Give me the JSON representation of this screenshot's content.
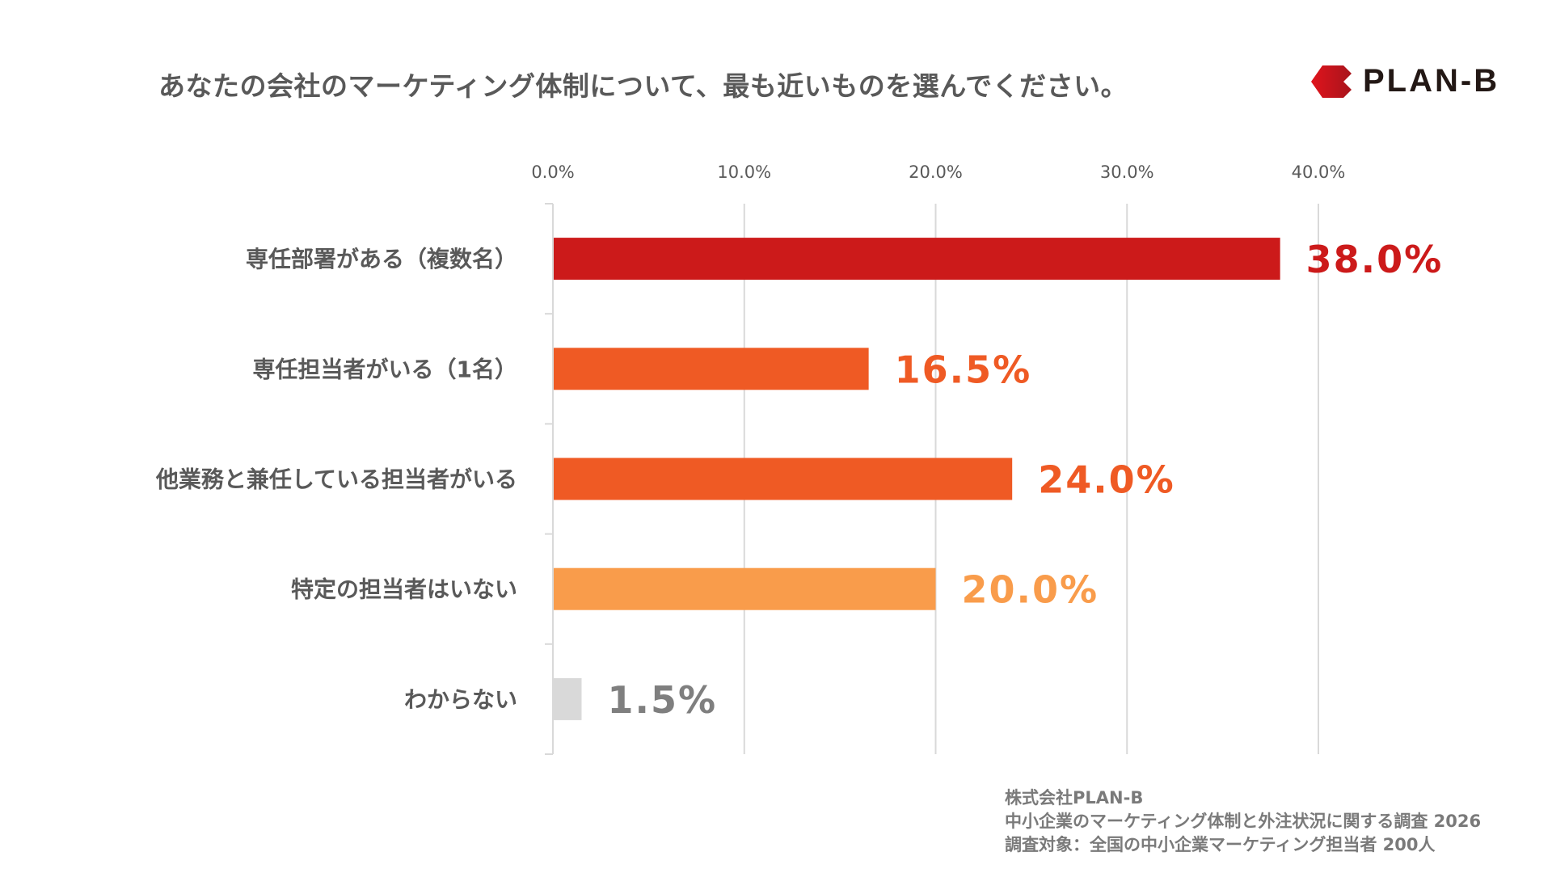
{
  "title": "あなたの会社のマーケティング体制について、最も近いものを選んでください。",
  "logo": {
    "text": "PLAN-B",
    "color": "#d4141c"
  },
  "footer": [
    "株式会社PLAN-B",
    "中小企業のマーケティング体制と外注状況に関する調査 2026",
    "調査対象：全国の中小企業マーケティング担当者 200人"
  ],
  "chart_data": {
    "type": "bar",
    "orientation": "horizontal",
    "categories": [
      "専任部署がある（複数名）",
      "専任担当者がいる（1名）",
      "他業務と兼任している担当者がいる",
      "特定の担当者はいない",
      "わからない"
    ],
    "values": [
      38.0,
      16.5,
      24.0,
      20.0,
      1.5
    ],
    "data_labels": [
      "38.0%",
      "16.5%",
      "24.0%",
      "20.0%",
      "1.5%"
    ],
    "colors": [
      "#cc1a1a",
      "#ef5a24",
      "#ef5a24",
      "#f99c4b",
      "#d9d9d9"
    ],
    "label_colors": [
      "#cc1a1a",
      "#ef5a24",
      "#ef5a24",
      "#f99c4b",
      "#7f7f7f"
    ],
    "xlim": [
      0,
      40
    ],
    "ticks": [
      "0.0%",
      "10.0%",
      "20.0%",
      "30.0%",
      "40.0%"
    ],
    "tick_values": [
      0,
      10,
      20,
      30,
      40
    ],
    "axis_position": "top",
    "grid": true
  }
}
